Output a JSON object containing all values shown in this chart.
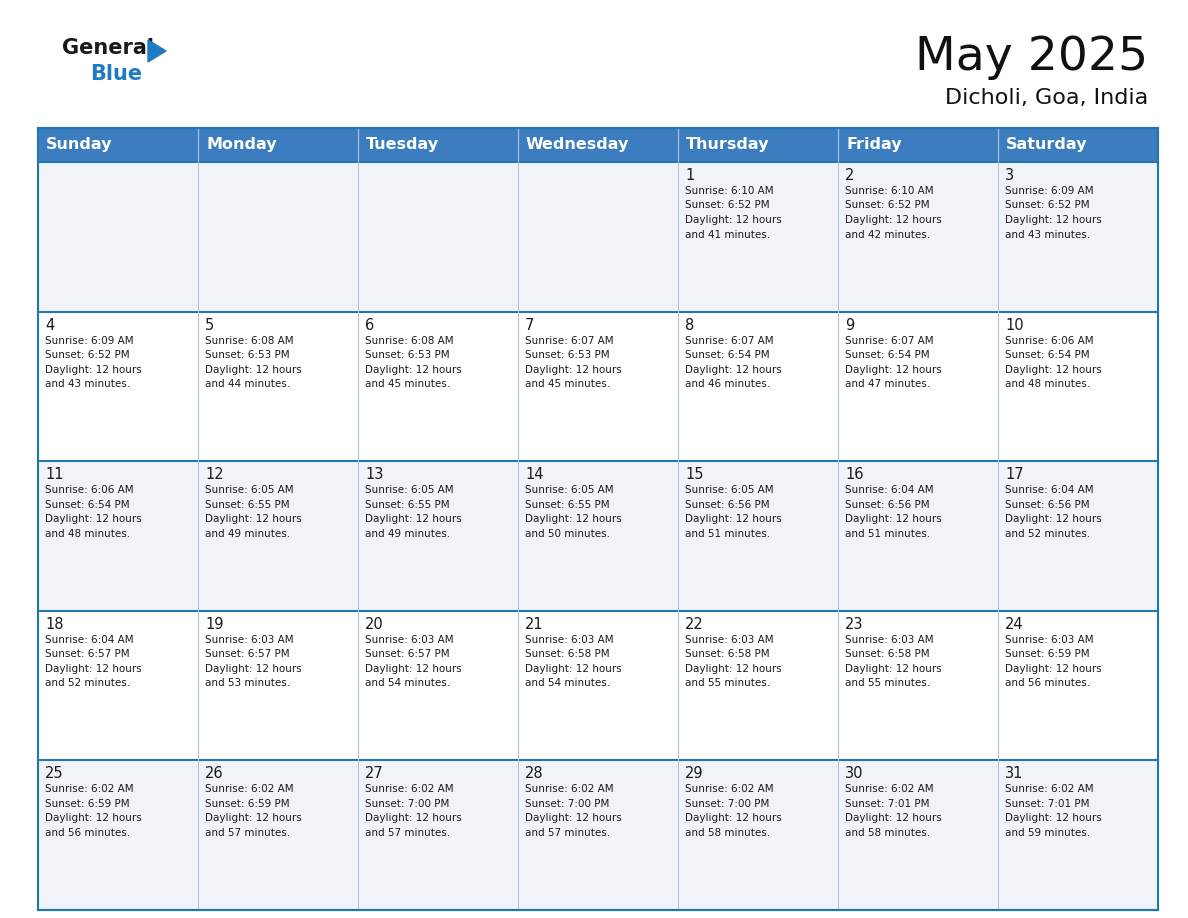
{
  "title": "May 2025",
  "subtitle": "Dicholi, Goa, India",
  "header_bg": "#3c7dbf",
  "header_text_color": "#ffffff",
  "row_bg_light": "#f0f4f8",
  "row_bg_white": "#ffffff",
  "border_color": "#2176ae",
  "grid_color": "#b0c4de",
  "text_color": "#1a1a1a",
  "logo_black": "#1a1a1a",
  "logo_blue": "#1e7bc4",
  "triangle_color": "#1e7bc4",
  "header_days": [
    "Sunday",
    "Monday",
    "Tuesday",
    "Wednesday",
    "Thursday",
    "Friday",
    "Saturday"
  ],
  "weeks": [
    [
      {
        "day": "",
        "sunrise": "",
        "sunset": "",
        "daylight": ""
      },
      {
        "day": "",
        "sunrise": "",
        "sunset": "",
        "daylight": ""
      },
      {
        "day": "",
        "sunrise": "",
        "sunset": "",
        "daylight": ""
      },
      {
        "day": "",
        "sunrise": "",
        "sunset": "",
        "daylight": ""
      },
      {
        "day": "1",
        "sunrise": "6:10 AM",
        "sunset": "6:52 PM",
        "daylight": "12 hours and 41 minutes."
      },
      {
        "day": "2",
        "sunrise": "6:10 AM",
        "sunset": "6:52 PM",
        "daylight": "12 hours and 42 minutes."
      },
      {
        "day": "3",
        "sunrise": "6:09 AM",
        "sunset": "6:52 PM",
        "daylight": "12 hours and 43 minutes."
      }
    ],
    [
      {
        "day": "4",
        "sunrise": "6:09 AM",
        "sunset": "6:52 PM",
        "daylight": "12 hours and 43 minutes."
      },
      {
        "day": "5",
        "sunrise": "6:08 AM",
        "sunset": "6:53 PM",
        "daylight": "12 hours and 44 minutes."
      },
      {
        "day": "6",
        "sunrise": "6:08 AM",
        "sunset": "6:53 PM",
        "daylight": "12 hours and 45 minutes."
      },
      {
        "day": "7",
        "sunrise": "6:07 AM",
        "sunset": "6:53 PM",
        "daylight": "12 hours and 45 minutes."
      },
      {
        "day": "8",
        "sunrise": "6:07 AM",
        "sunset": "6:54 PM",
        "daylight": "12 hours and 46 minutes."
      },
      {
        "day": "9",
        "sunrise": "6:07 AM",
        "sunset": "6:54 PM",
        "daylight": "12 hours and 47 minutes."
      },
      {
        "day": "10",
        "sunrise": "6:06 AM",
        "sunset": "6:54 PM",
        "daylight": "12 hours and 48 minutes."
      }
    ],
    [
      {
        "day": "11",
        "sunrise": "6:06 AM",
        "sunset": "6:54 PM",
        "daylight": "12 hours and 48 minutes."
      },
      {
        "day": "12",
        "sunrise": "6:05 AM",
        "sunset": "6:55 PM",
        "daylight": "12 hours and 49 minutes."
      },
      {
        "day": "13",
        "sunrise": "6:05 AM",
        "sunset": "6:55 PM",
        "daylight": "12 hours and 49 minutes."
      },
      {
        "day": "14",
        "sunrise": "6:05 AM",
        "sunset": "6:55 PM",
        "daylight": "12 hours and 50 minutes."
      },
      {
        "day": "15",
        "sunrise": "6:05 AM",
        "sunset": "6:56 PM",
        "daylight": "12 hours and 51 minutes."
      },
      {
        "day": "16",
        "sunrise": "6:04 AM",
        "sunset": "6:56 PM",
        "daylight": "12 hours and 51 minutes."
      },
      {
        "day": "17",
        "sunrise": "6:04 AM",
        "sunset": "6:56 PM",
        "daylight": "12 hours and 52 minutes."
      }
    ],
    [
      {
        "day": "18",
        "sunrise": "6:04 AM",
        "sunset": "6:57 PM",
        "daylight": "12 hours and 52 minutes."
      },
      {
        "day": "19",
        "sunrise": "6:03 AM",
        "sunset": "6:57 PM",
        "daylight": "12 hours and 53 minutes."
      },
      {
        "day": "20",
        "sunrise": "6:03 AM",
        "sunset": "6:57 PM",
        "daylight": "12 hours and 54 minutes."
      },
      {
        "day": "21",
        "sunrise": "6:03 AM",
        "sunset": "6:58 PM",
        "daylight": "12 hours and 54 minutes."
      },
      {
        "day": "22",
        "sunrise": "6:03 AM",
        "sunset": "6:58 PM",
        "daylight": "12 hours and 55 minutes."
      },
      {
        "day": "23",
        "sunrise": "6:03 AM",
        "sunset": "6:58 PM",
        "daylight": "12 hours and 55 minutes."
      },
      {
        "day": "24",
        "sunrise": "6:03 AM",
        "sunset": "6:59 PM",
        "daylight": "12 hours and 56 minutes."
      }
    ],
    [
      {
        "day": "25",
        "sunrise": "6:02 AM",
        "sunset": "6:59 PM",
        "daylight": "12 hours and 56 minutes."
      },
      {
        "day": "26",
        "sunrise": "6:02 AM",
        "sunset": "6:59 PM",
        "daylight": "12 hours and 57 minutes."
      },
      {
        "day": "27",
        "sunrise": "6:02 AM",
        "sunset": "7:00 PM",
        "daylight": "12 hours and 57 minutes."
      },
      {
        "day": "28",
        "sunrise": "6:02 AM",
        "sunset": "7:00 PM",
        "daylight": "12 hours and 57 minutes."
      },
      {
        "day": "29",
        "sunrise": "6:02 AM",
        "sunset": "7:00 PM",
        "daylight": "12 hours and 58 minutes."
      },
      {
        "day": "30",
        "sunrise": "6:02 AM",
        "sunset": "7:01 PM",
        "daylight": "12 hours and 58 minutes."
      },
      {
        "day": "31",
        "sunrise": "6:02 AM",
        "sunset": "7:01 PM",
        "daylight": "12 hours and 59 minutes."
      }
    ]
  ],
  "title_fontsize": 34,
  "subtitle_fontsize": 16,
  "day_number_fontsize": 10.5,
  "cell_text_fontsize": 7.5,
  "header_fontsize": 11.5
}
